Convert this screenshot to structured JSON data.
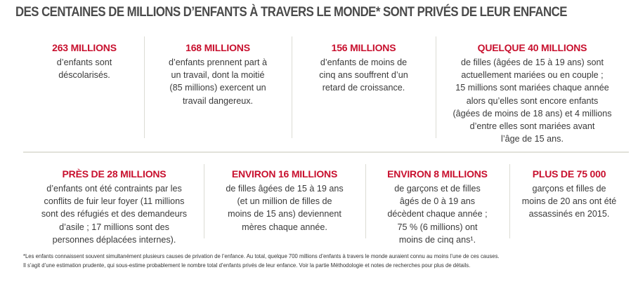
{
  "title": "DES CENTAINES DE MILLIONS D’ENFANTS À TRAVERS LE MONDE* SONT PRIVÉS DE LEUR ENFANCE",
  "rows": [
    [
      {
        "headline": "263 MILLIONS",
        "lines": [
          "d’enfants sont",
          "déscolarisés."
        ]
      },
      {
        "headline": "168 MILLIONS",
        "lines": [
          "d’enfants prennent part à",
          "un travail, dont la moitié",
          "(85 millions) exercent un",
          "travail dangereux."
        ]
      },
      {
        "headline": "156 MILLIONS",
        "lines": [
          "d’enfants de moins de",
          "cinq ans souffrent d’un",
          "retard de croissance."
        ]
      },
      {
        "headline": "QUELQUE 40 MILLIONS",
        "lines": [
          "de filles (âgées de 15 à 19 ans) sont",
          "actuellement mariées ou en couple ;",
          "15 millions sont mariées chaque année",
          "alors qu’elles sont encore enfants",
          "(âgées de moins de 18 ans) et 4 millions",
          "d’entre elles sont mariées avant",
          "l’âge de 15 ans."
        ]
      }
    ],
    [
      {
        "headline": "PRÈS DE 28 MILLIONS",
        "lines": [
          "d’enfants ont été contraints par les",
          "conflits de fuir leur foyer (11 millions",
          "sont des réfugiés et des demandeurs",
          "d’asile ; 17 millions sont des",
          "personnes déplacées internes)."
        ]
      },
      {
        "headline": "ENVIRON 16 MILLIONS",
        "lines": [
          "de filles âgées de 15 à 19 ans",
          "(et un million de filles de",
          "moins de 15 ans) deviennent",
          "mères chaque année."
        ]
      },
      {
        "headline": "ENVIRON 8 MILLIONS",
        "lines": [
          "de garçons et de filles",
          "âgés de 0 à 19 ans",
          "décèdent chaque année ;",
          "75 % (6 millions) ont",
          "moins de cinq ans¹."
        ]
      },
      {
        "headline": "PLUS DE 75 000",
        "lines": [
          "garçons et filles de",
          "moins de 20 ans ont été",
          "assassinés en 2015."
        ]
      }
    ]
  ],
  "footnote": [
    "*Les enfants connaissent souvent simultanément plusieurs causes de privation de l’enfance. Au total, quelque 700 millions d’enfants à travers le monde auraient connu au moins l’une de ces causes.",
    "Il s’agit d’une estimation prudente, qui sous-estime probablement le nombre total d’enfants privés de leur enfance. Voir la partie Méthodologie et notes de recherches pour plus de détails."
  ]
}
